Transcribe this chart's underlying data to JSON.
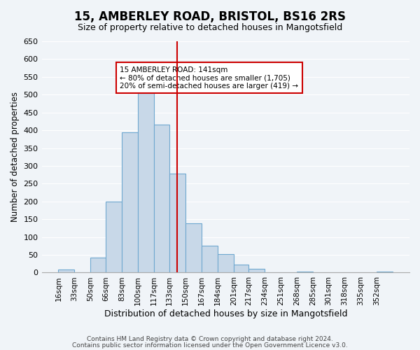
{
  "title": "15, AMBERLEY ROAD, BRISTOL, BS16 2RS",
  "subtitle": "Size of property relative to detached houses in Mangotsfield",
  "xlabel": "Distribution of detached houses by size in Mangotsfield",
  "ylabel": "Number of detached properties",
  "bar_labels": [
    "16sqm",
    "33sqm",
    "50sqm",
    "66sqm",
    "83sqm",
    "100sqm",
    "117sqm",
    "133sqm",
    "150sqm",
    "167sqm",
    "184sqm",
    "201sqm",
    "217sqm",
    "234sqm",
    "251sqm",
    "268sqm",
    "285sqm",
    "301sqm",
    "318sqm",
    "335sqm",
    "352sqm"
  ],
  "bar_values": [
    8,
    0,
    43,
    200,
    395,
    505,
    415,
    278,
    138,
    75,
    52,
    23,
    10,
    0,
    0,
    3,
    0,
    0,
    0,
    0,
    3
  ],
  "bar_color": "#c8d8e8",
  "bar_edge_color": "#6fa8d0",
  "property_line_x": 141,
  "property_line_label": "15 AMBERLEY ROAD: 141sqm",
  "annotation_line1": "← 80% of detached houses are smaller (1,705)",
  "annotation_line2": "20% of semi-detached houses are larger (419) →",
  "annotation_box_color": "#ffffff",
  "annotation_box_edge": "#cc0000",
  "vline_color": "#cc0000",
  "footer_line1": "Contains HM Land Registry data © Crown copyright and database right 2024.",
  "footer_line2": "Contains public sector information licensed under the Open Government Licence v3.0.",
  "ylim": [
    0,
    650
  ],
  "yticks": [
    0,
    50,
    100,
    150,
    200,
    250,
    300,
    350,
    400,
    450,
    500,
    550,
    600,
    650
  ],
  "bin_edges": [
    16,
    33,
    50,
    66,
    83,
    100,
    117,
    133,
    150,
    167,
    184,
    201,
    217,
    234,
    251,
    268,
    285,
    301,
    318,
    335,
    352,
    369
  ],
  "background_color": "#f0f4f8"
}
